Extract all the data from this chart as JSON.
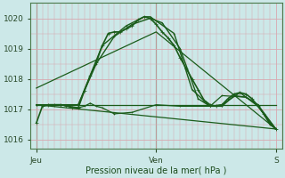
{
  "bg_color": "#cce8e8",
  "grid_color": "#d8a8b0",
  "line_color": "#1a5c1a",
  "ylabel_text": "Pression niveau de la mer( hPa )",
  "ylim": [
    1015.7,
    1020.5
  ],
  "yticks": [
    1016,
    1017,
    1018,
    1019,
    1020
  ],
  "xlim": [
    0,
    42
  ],
  "xtick_positions": [
    1,
    21,
    41
  ],
  "xtick_labels": [
    "Jeu",
    "Ven",
    "S"
  ],
  "series": [
    {
      "x": [
        1,
        2,
        3,
        4,
        5,
        6,
        7,
        8,
        9,
        10,
        11,
        12,
        13,
        14,
        15,
        16,
        17,
        18,
        19,
        20,
        21,
        22,
        23,
        24,
        25,
        26,
        27,
        28,
        29,
        30,
        31,
        32,
        33,
        34,
        35,
        36,
        37,
        38,
        39,
        40,
        41
      ],
      "y": [
        1016.55,
        1017.1,
        1017.15,
        1017.15,
        1017.15,
        1017.12,
        1017.05,
        1017.05,
        1017.6,
        1018.1,
        1018.55,
        1019.1,
        1019.5,
        1019.55,
        1019.55,
        1019.65,
        1019.75,
        1019.95,
        1020.05,
        1020.0,
        1019.8,
        1019.55,
        1019.35,
        1019.1,
        1018.7,
        1018.35,
        1018.0,
        1017.65,
        1017.3,
        1017.15,
        1017.1,
        1017.15,
        1017.35,
        1017.5,
        1017.55,
        1017.5,
        1017.35,
        1017.1,
        1016.85,
        1016.55,
        1016.35
      ],
      "lw": 1.2,
      "ms": 2.2,
      "marker": "+"
    },
    {
      "x": [
        1,
        41
      ],
      "y": [
        1017.15,
        1016.35
      ],
      "lw": 0.9,
      "ms": 0,
      "marker": null
    },
    {
      "x": [
        1,
        41
      ],
      "y": [
        1017.15,
        1017.15
      ],
      "lw": 0.9,
      "ms": 0,
      "marker": null
    },
    {
      "x": [
        1,
        5,
        8,
        11,
        14,
        17,
        20,
        22,
        25,
        28,
        30,
        32,
        34,
        36,
        38,
        40,
        41
      ],
      "y": [
        1017.15,
        1017.15,
        1017.15,
        1018.5,
        1019.4,
        1019.8,
        1020.0,
        1019.85,
        1019.0,
        1017.35,
        1017.1,
        1017.1,
        1017.45,
        1017.4,
        1017.15,
        1016.5,
        1016.35
      ],
      "lw": 1.0,
      "ms": 2.0,
      "marker": "+"
    },
    {
      "x": [
        1,
        5,
        8,
        12,
        16,
        19,
        20,
        24,
        27,
        30,
        32,
        35,
        38,
        41
      ],
      "y": [
        1017.15,
        1017.15,
        1017.15,
        1019.1,
        1019.75,
        1020.05,
        1020.05,
        1019.5,
        1017.65,
        1017.1,
        1017.15,
        1017.55,
        1017.1,
        1016.35
      ],
      "lw": 1.0,
      "ms": 2.0,
      "marker": "+"
    },
    {
      "x": [
        1,
        21,
        41
      ],
      "y": [
        1017.7,
        1019.55,
        1016.35
      ],
      "lw": 0.9,
      "ms": 0,
      "marker": null
    },
    {
      "x": [
        1,
        5,
        8,
        9,
        10,
        11,
        12,
        14,
        17,
        21,
        25,
        30,
        32,
        36,
        38,
        41
      ],
      "y": [
        1017.15,
        1017.15,
        1017.05,
        1017.1,
        1017.2,
        1017.1,
        1017.05,
        1016.85,
        1016.9,
        1017.15,
        1017.1,
        1017.1,
        1017.45,
        1017.4,
        1017.15,
        1016.35
      ],
      "lw": 0.9,
      "ms": 1.8,
      "marker": "+"
    }
  ],
  "figsize": [
    3.2,
    2.0
  ],
  "dpi": 100
}
